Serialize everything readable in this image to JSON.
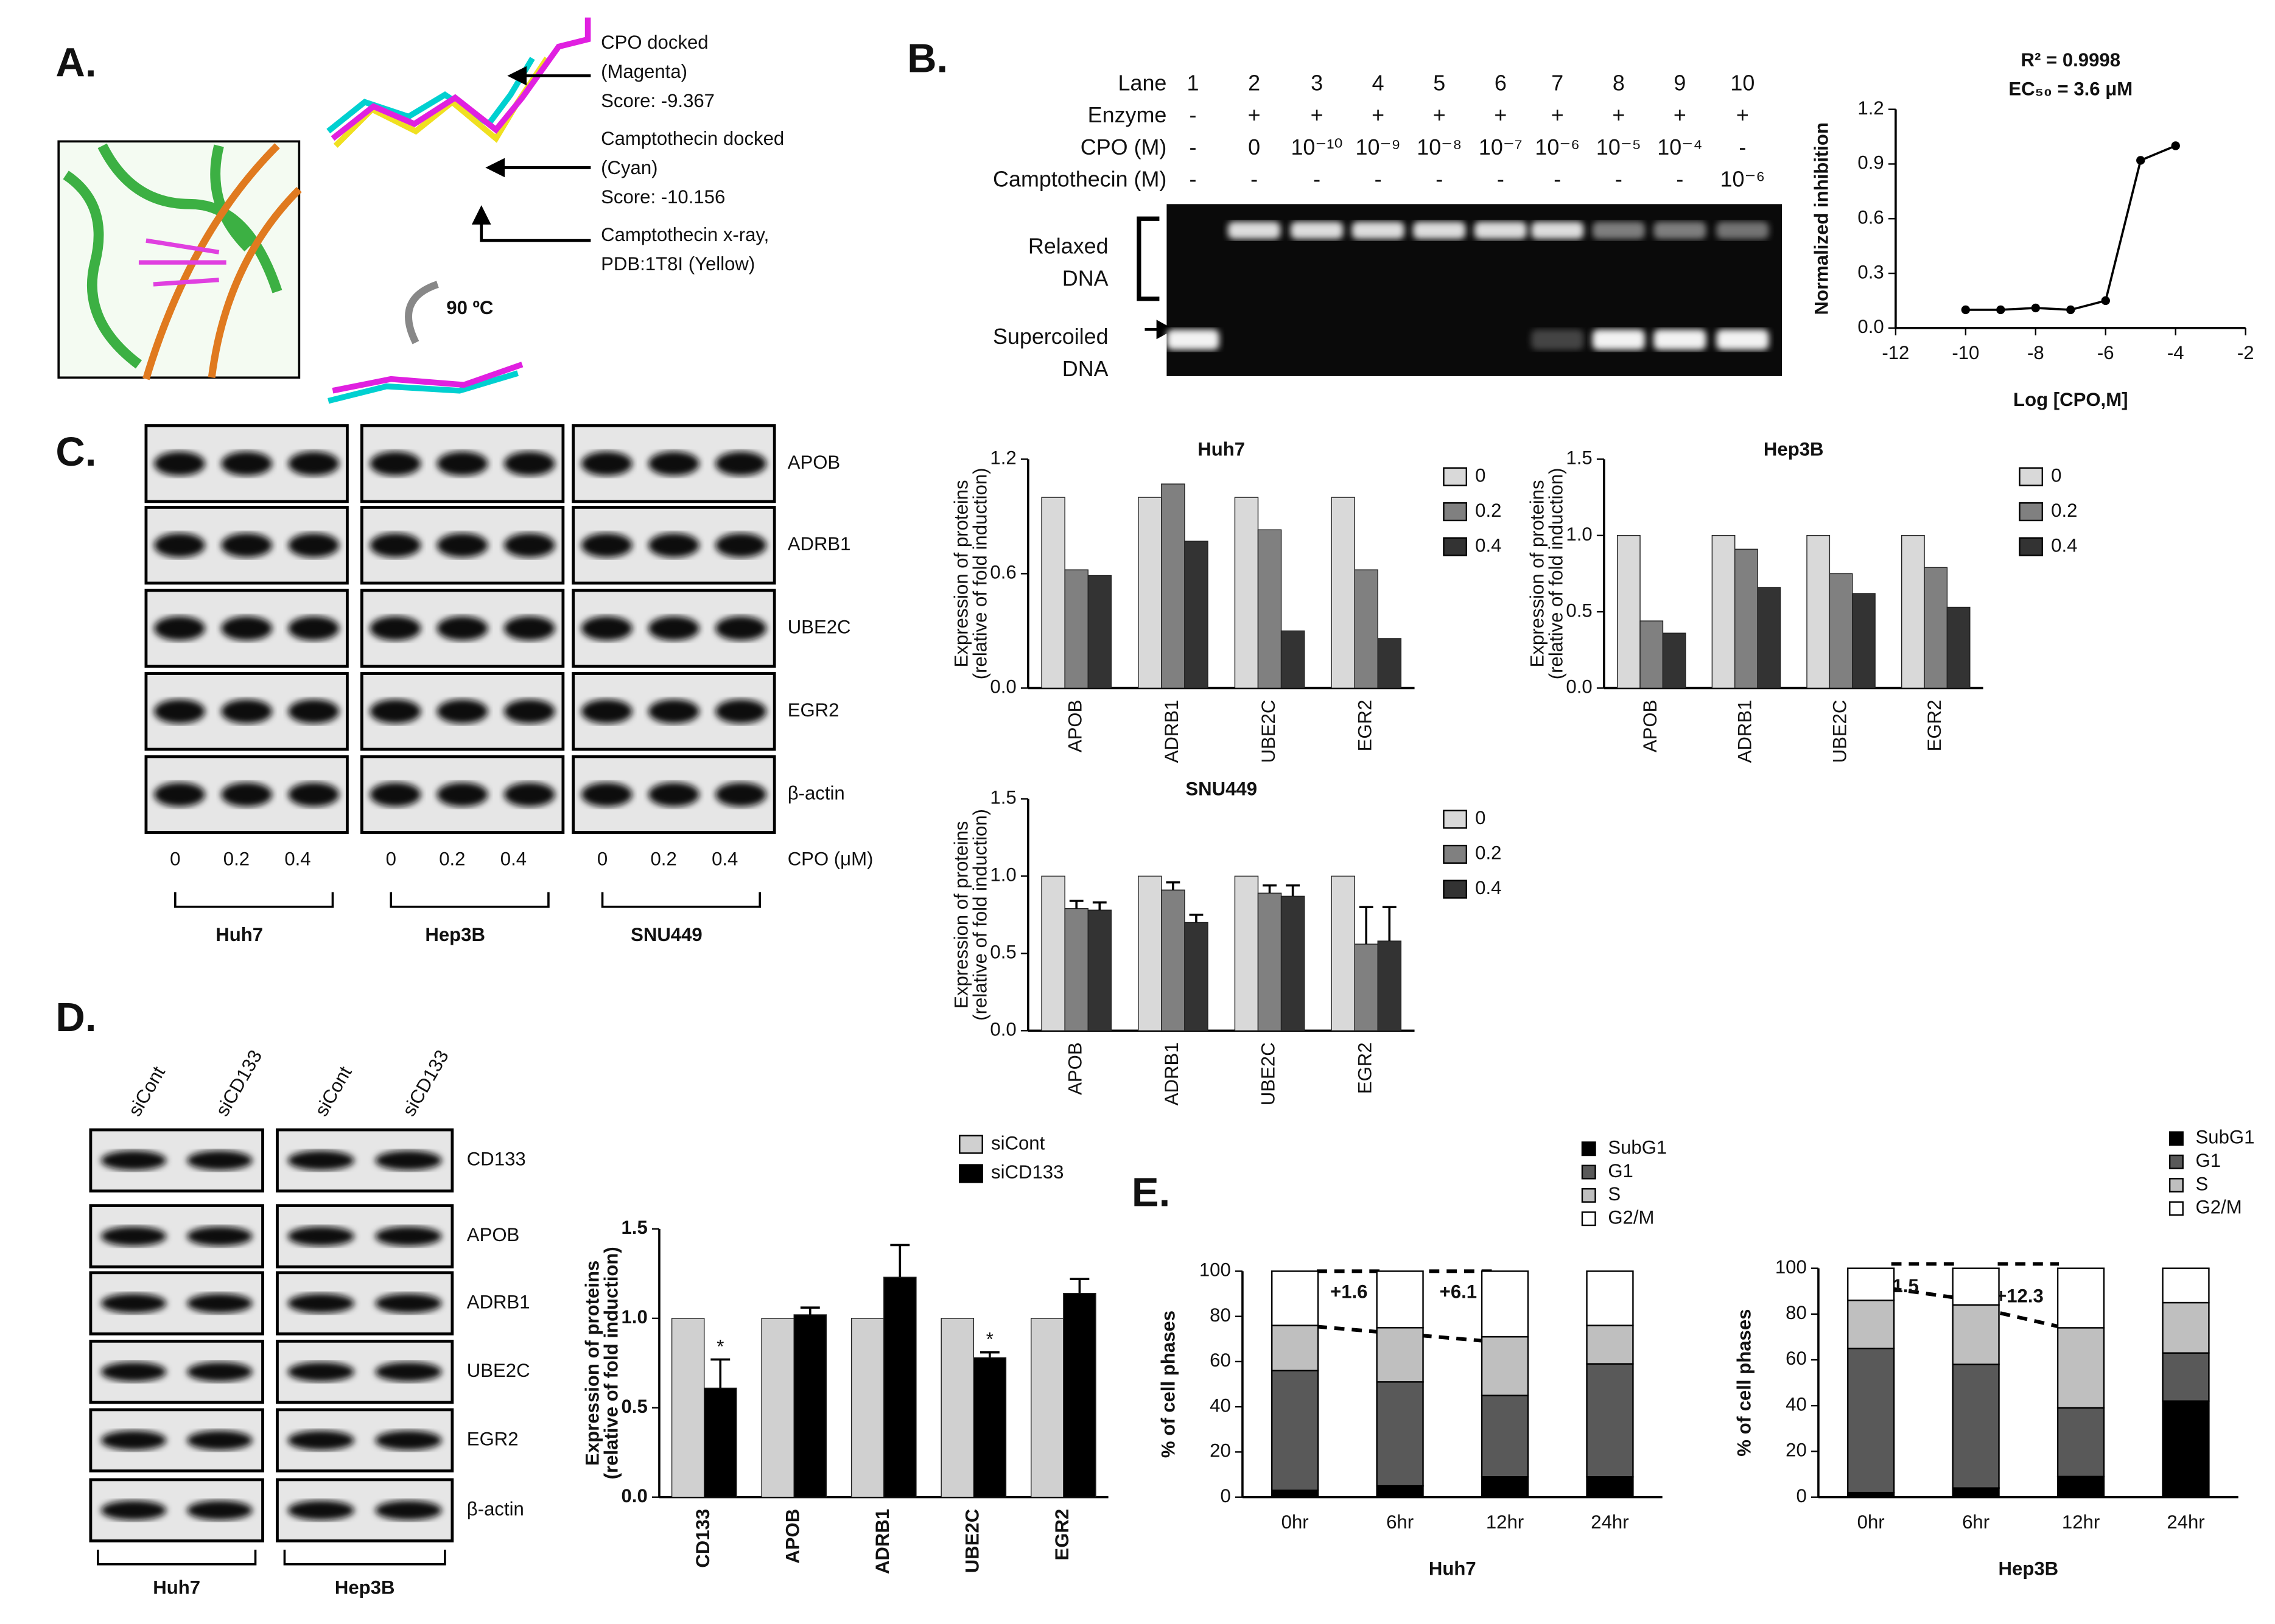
{
  "panels": {
    "A": {
      "label": "A.",
      "labels": [
        [
          "CPO docked",
          "(Magenta)",
          "Score:  -9.367"
        ],
        [
          "Camptothecin docked",
          "(Cyan)",
          "Score: -10.156"
        ],
        [
          "Camptothecin x-ray,",
          "PDB:1T8I  (Yellow)"
        ]
      ],
      "rotation": "90 ºC"
    },
    "B": {
      "label": "B.",
      "rows": [
        {
          "name": "Lane",
          "cells": [
            "1",
            "2",
            "3",
            "4",
            "5",
            "6",
            "7",
            "8",
            "9",
            "10"
          ]
        },
        {
          "name": "Enzyme",
          "cells": [
            "-",
            "+",
            "+",
            "+",
            "+",
            "+",
            "+",
            "+",
            "+",
            "+"
          ]
        },
        {
          "name": "CPO (M)",
          "cells": [
            "-",
            "0",
            "10⁻¹⁰",
            "10⁻⁹",
            "10⁻⁸",
            "10⁻⁷",
            "10⁻⁶",
            "10⁻⁵",
            "10⁻⁴",
            "-"
          ]
        },
        {
          "name": "Camptothecin (M)",
          "cells": [
            "-",
            "-",
            "-",
            "-",
            "-",
            "-",
            "-",
            "-",
            "-",
            "10⁻⁶"
          ]
        }
      ],
      "gel_labels": [
        [
          "Relaxed",
          "DNA"
        ],
        [
          "Supercoiled",
          "DNA"
        ]
      ]
    },
    "C": {
      "label": "C.",
      "proteins": [
        "APOB",
        "ADRB1",
        "UBE2C",
        "EGR2",
        "β-actin"
      ],
      "doses": [
        "0",
        "0.2",
        "0.4"
      ],
      "dose_label": "CPO (μM)",
      "cell_lines": [
        "Huh7",
        "Hep3B",
        "SNU449"
      ]
    },
    "D": {
      "label": "D.",
      "conditions": [
        "siCont",
        "siCD133"
      ],
      "proteins": [
        "CD133",
        "APOB",
        "ADRB1",
        "UBE2C",
        "EGR2",
        "β-actin"
      ],
      "cell_lines": [
        "Huh7",
        "Hep3B"
      ]
    },
    "E": {
      "label": "E."
    }
  },
  "chart_data": [
    {
      "type": "line",
      "x": [
        -10,
        -9,
        -8,
        -7,
        -6,
        -5,
        -4
      ],
      "values": [
        0.1,
        0.1,
        0.11,
        0.1,
        0.15,
        0.92,
        1.0
      ],
      "color": "#000000",
      "xlim": [
        -12,
        -2
      ],
      "xticks": [
        -12,
        -10,
        -8,
        -6,
        -4,
        -2
      ],
      "ylim": [
        0,
        1.2
      ],
      "yticks": [
        {
          "value": 0,
          "label": "0.0"
        },
        0.3,
        0.6,
        0.9,
        1.2
      ],
      "xlabel": "Log [CPO,M]",
      "ylabel": "Normalized inhibition",
      "annotations": [
        "R² = 0.9998",
        "EC₅₀ = 3.6 μM"
      ]
    },
    {
      "type": "bar",
      "title": "Huh7",
      "categories": [
        "APOB",
        "ADRB1",
        "UBE2C",
        "EGR2"
      ],
      "series": [
        {
          "name": "0",
          "color": "#d9d9d9",
          "values": [
            1,
            1,
            1,
            1
          ]
        },
        {
          "name": "0.2",
          "color": "#808080",
          "values": [
            0.62,
            1.07,
            0.83,
            0.62
          ]
        },
        {
          "name": "0.4",
          "color": "#333333",
          "values": [
            0.59,
            0.77,
            0.3,
            0.26
          ]
        }
      ],
      "ylim": [
        0,
        1.2
      ],
      "yticks": [
        {
          "value": 0,
          "label": "0.0"
        },
        0.6,
        1.2
      ],
      "ylabel": [
        "Expression of proteins",
        "(relative of fold induction)"
      ],
      "legend": "right"
    },
    {
      "type": "bar",
      "title": "Hep3B",
      "categories": [
        "APOB",
        "ADRB1",
        "UBE2C",
        "EGR2"
      ],
      "series": [
        {
          "name": "0",
          "color": "#d9d9d9",
          "values": [
            1,
            1,
            1,
            1
          ]
        },
        {
          "name": "0.2",
          "color": "#808080",
          "values": [
            0.44,
            0.91,
            0.75,
            0.79
          ]
        },
        {
          "name": "0.4",
          "color": "#333333",
          "values": [
            0.36,
            0.66,
            0.62,
            0.53
          ]
        }
      ],
      "ylim": [
        0,
        1.5
      ],
      "yticks": [
        {
          "value": 0,
          "label": "0.0"
        },
        0.5,
        {
          "value": 1,
          "label": "1.0"
        },
        1.5
      ],
      "ylabel": [
        "Expression of proteins",
        "(relative of fold induction)"
      ],
      "legend": "right"
    },
    {
      "type": "bar",
      "title": "SNU449",
      "categories": [
        "APOB",
        "ADRB1",
        "UBE2C",
        "EGR2"
      ],
      "series": [
        {
          "name": "0",
          "color": "#d9d9d9",
          "values": [
            1,
            1,
            1,
            1
          ]
        },
        {
          "name": "0.2",
          "color": "#808080",
          "values": [
            0.79,
            0.91,
            0.89,
            0.56
          ],
          "errors": [
            0.05,
            0.05,
            0.05,
            0.24
          ]
        },
        {
          "name": "0.4",
          "color": "#333333",
          "values": [
            0.78,
            0.7,
            0.87,
            0.58
          ],
          "errors": [
            0.05,
            0.05,
            0.07,
            0.22
          ]
        }
      ],
      "ylim": [
        0,
        1.5
      ],
      "yticks": [
        {
          "value": 0,
          "label": "0.0"
        },
        0.5,
        {
          "value": 1,
          "label": "1.0"
        },
        1.5
      ],
      "ylabel": [
        "Expression of proteins",
        "(relative of fold induction)"
      ],
      "legend": "right"
    },
    {
      "type": "bar",
      "categories": [
        "CD133",
        "APOB",
        "ADRB1",
        "UBE2C",
        "EGR2"
      ],
      "series": [
        {
          "name": "siCont",
          "color": "#d0d0d0",
          "values": [
            1,
            1,
            1,
            1,
            1
          ]
        },
        {
          "name": "siCD133",
          "color": "#000000",
          "values": [
            0.61,
            1.02,
            1.23,
            0.78,
            1.14
          ],
          "errors": [
            0.16,
            0.04,
            0.18,
            0.03,
            0.08
          ]
        }
      ],
      "significance": [
        "*",
        null,
        null,
        "*",
        null
      ],
      "ylim": [
        0,
        1.5
      ],
      "yticks": [
        {
          "value": 0,
          "label": "0.0"
        },
        0.5,
        {
          "value": 1,
          "label": "1.0"
        },
        1.5
      ],
      "ylabel": [
        "Expression of proteins",
        "(relative of fold induction)"
      ],
      "legend": "top-right"
    },
    {
      "type": "bar",
      "stacked": true,
      "categories": [
        "0hr",
        "6hr",
        "12hr",
        "24hr"
      ],
      "series": [
        {
          "name": "SubG1",
          "color": "#000000",
          "values": [
            3,
            5,
            9,
            9
          ]
        },
        {
          "name": "G1",
          "color": "#595959",
          "values": [
            53,
            46,
            36,
            50
          ]
        },
        {
          "name": "S",
          "color": "#bfbfbf",
          "values": [
            20,
            24,
            26,
            17
          ]
        },
        {
          "name": "G2/M",
          "color": "#ffffff",
          "values": [
            24,
            25,
            29,
            24
          ]
        }
      ],
      "ylim": [
        0,
        100
      ],
      "yticks": [
        0,
        20,
        40,
        60,
        80,
        100
      ],
      "xlabel": "Huh7",
      "ylabel": "% of cell phases",
      "annotations": [
        "+1.6",
        "+6.1"
      ],
      "legend": "top-right"
    },
    {
      "type": "bar",
      "stacked": true,
      "categories": [
        "0hr",
        "6hr",
        "12hr",
        "24hr"
      ],
      "series": [
        {
          "name": "SubG1",
          "color": "#000000",
          "values": [
            2,
            4,
            9,
            42
          ]
        },
        {
          "name": "G1",
          "color": "#595959",
          "values": [
            63,
            54,
            30,
            21
          ]
        },
        {
          "name": "S",
          "color": "#bfbfbf",
          "values": [
            21,
            26,
            35,
            22
          ]
        },
        {
          "name": "G2/M",
          "color": "#ffffff",
          "values": [
            14,
            16,
            26,
            15
          ]
        }
      ],
      "ylim": [
        0,
        100
      ],
      "yticks": [
        0,
        20,
        40,
        60,
        80,
        100
      ],
      "xlabel": "Hep3B",
      "ylabel": "% of cell phases",
      "annotations": [
        "+1.5",
        "+12.3"
      ],
      "legend": "top-right"
    }
  ]
}
